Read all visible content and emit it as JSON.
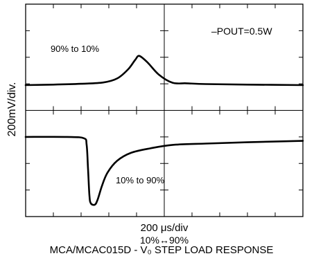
{
  "chart_data": {
    "type": "line",
    "title": "",
    "xlabel": "200 μs/div",
    "ylabel": "200mV/div.",
    "x_unit": "div",
    "y_unit": "div",
    "xlim": [
      0,
      10
    ],
    "ylim": [
      -4,
      4
    ],
    "divisions": {
      "x": 10,
      "y": 8
    },
    "grid": false,
    "center_axes": true,
    "annotations": {
      "pout": "–POUT=0.5W",
      "trace_top": "90% to 10%",
      "trace_bottom": "10% to 90%",
      "step": "10%↔90%",
      "caption": "MCA/MCAC015D - V₀ STEP LOAD RESPONSE"
    },
    "series": [
      {
        "x": [
          0,
          1,
          2,
          2.8,
          3.3,
          3.7,
          3.95,
          4.1,
          4.4,
          4.8,
          5.3,
          5.8,
          6.5,
          8,
          10
        ],
        "values": [
          0.95,
          0.97,
          1.0,
          1.05,
          1.2,
          1.55,
          1.9,
          2.05,
          1.8,
          1.35,
          1.04,
          1.02,
          0.99,
          0.97,
          0.95
        ]
      },
      {
        "x": [
          0,
          1.5,
          2.1,
          2.2,
          2.25,
          2.3,
          2.35,
          2.5,
          2.6,
          2.75,
          2.95,
          3.3,
          3.8,
          4.5,
          5.3,
          6.5,
          8,
          10
        ],
        "values": [
          -1.0,
          -1.0,
          -1.05,
          -1.3,
          -2.2,
          -3.2,
          -3.5,
          -3.55,
          -3.35,
          -2.85,
          -2.35,
          -1.9,
          -1.6,
          -1.43,
          -1.3,
          -1.25,
          -1.2,
          -1.15
        ]
      }
    ]
  }
}
